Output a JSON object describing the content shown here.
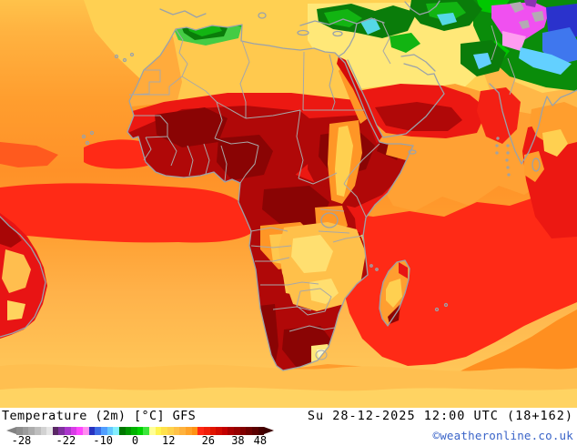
{
  "legend": {
    "title": "Temperature (2m) [°C] GFS",
    "datetime": "Su 28-12-2025 12:00 UTC (18+162)",
    "copyright": "©weatheronline.co.uk",
    "colorbar": {
      "arrow_left_color": "#828282",
      "arrow_right_color": "#3c0000",
      "stops": [
        "#8e8e8e",
        "#9c9c9c",
        "#acacac",
        "#bebebe",
        "#d2d2d2",
        "#e6e6e6",
        "#5a2866",
        "#8030a0",
        "#aa36cc",
        "#d83ce6",
        "#ff46ff",
        "#ff8cf0",
        "#2832c0",
        "#3c6ce6",
        "#509eff",
        "#64c8ff",
        "#82eeff",
        "#007800",
        "#009600",
        "#00b400",
        "#00d200",
        "#3ce63c",
        "#ffff96",
        "#fff450",
        "#ffe14b",
        "#ffd24b",
        "#ffc146",
        "#ffb23c",
        "#ffa228",
        "#ff9214",
        "#ff2814",
        "#f01e0a",
        "#e11400",
        "#d20a00",
        "#c30000",
        "#a80000",
        "#960000",
        "#820000",
        "#6e0000",
        "#5a0000",
        "#460000"
      ],
      "ticks": [
        {
          "label": "-28",
          "pos": 0.02
        },
        {
          "label": "-22",
          "pos": 0.2
        },
        {
          "label": "-10",
          "pos": 0.35
        },
        {
          "label": "0",
          "pos": 0.48
        },
        {
          "label": "12",
          "pos": 0.615
        },
        {
          "label": "26",
          "pos": 0.775
        },
        {
          "label": "38",
          "pos": 0.895
        },
        {
          "label": "48",
          "pos": 0.985
        }
      ]
    }
  },
  "palette": {
    "ocean_orange": "#ff9d2e",
    "ocean_yellow_south": "#ffd662",
    "sahara_yellow": "#ffc94e",
    "mideast_pale_yellow": "#ffe878",
    "equatorial_red": "#ff2a16",
    "hot_land_red": "#ec1812",
    "very_hot_dark_red": "#b00808",
    "extreme_dark_red": "#8a0404",
    "warm_orange": "#ff9626",
    "warm_yellow_patch": "#ffc84e",
    "cold_green": "#0a7c0a",
    "cold_bright_green": "#12b412",
    "cold_cyan": "#63d0ff",
    "cold_blue": "#2a32cc",
    "cold_magenta": "#f050f0",
    "offscale_gray": "#b4aab4",
    "coastline_gray": "#9aa2aa",
    "border_gray": "#a8a8a8"
  }
}
